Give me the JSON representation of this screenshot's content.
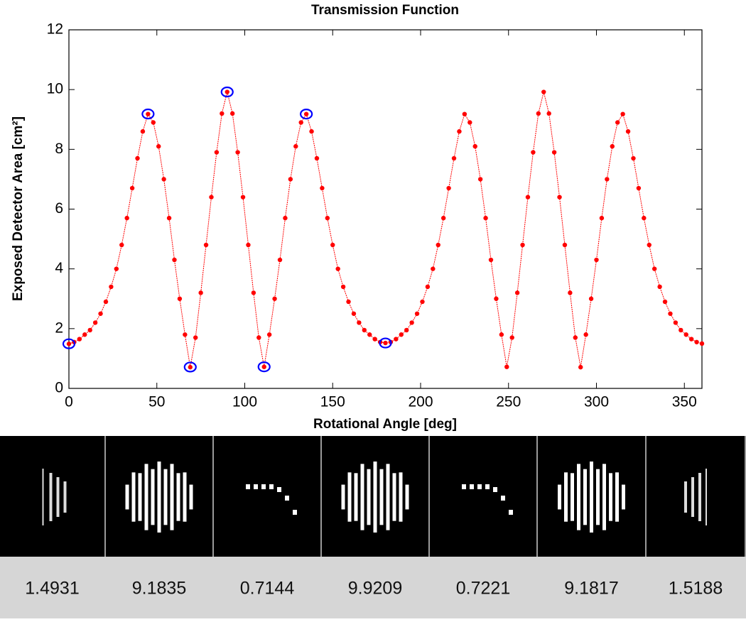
{
  "chart_data": {
    "type": "line",
    "title": "Transmission Function",
    "xlabel": "Rotational Angle [deg]",
    "ylabel": "Exposed Detector Area [cm²]",
    "x": [
      0,
      3,
      6,
      9,
      12,
      15,
      18,
      21,
      24,
      27,
      30,
      33,
      36,
      39,
      42,
      45,
      48,
      51,
      54,
      57,
      60,
      63,
      66,
      69,
      72,
      75,
      78,
      81,
      84,
      87,
      90,
      93,
      96,
      99,
      102,
      105,
      108,
      111,
      114,
      117,
      120,
      123,
      126,
      129,
      132,
      135,
      138,
      141,
      144,
      147,
      150,
      153,
      156,
      159,
      162,
      165,
      168,
      171,
      174,
      177,
      180,
      183,
      186,
      189,
      192,
      195,
      198,
      201,
      204,
      207,
      210,
      213,
      216,
      219,
      222,
      225,
      228,
      231,
      234,
      237,
      240,
      243,
      246,
      249,
      252,
      255,
      258,
      261,
      264,
      267,
      270,
      273,
      276,
      279,
      282,
      285,
      288,
      291,
      294,
      297,
      300,
      303,
      306,
      309,
      312,
      315,
      318,
      321,
      324,
      327,
      330,
      333,
      336,
      339,
      342,
      345,
      348,
      351,
      354,
      357,
      360
    ],
    "values": [
      1.49,
      1.55,
      1.65,
      1.8,
      1.95,
      2.2,
      2.5,
      2.9,
      3.4,
      4.0,
      4.8,
      5.7,
      6.7,
      7.7,
      8.6,
      9.18,
      8.9,
      8.1,
      7.0,
      5.7,
      4.3,
      3.0,
      1.8,
      0.71,
      1.7,
      3.2,
      4.8,
      6.4,
      7.9,
      9.2,
      9.92,
      9.2,
      7.9,
      6.4,
      4.8,
      3.2,
      1.7,
      0.72,
      1.8,
      3.0,
      4.3,
      5.7,
      7.0,
      8.1,
      8.9,
      9.18,
      8.6,
      7.7,
      6.7,
      5.7,
      4.8,
      4.0,
      3.4,
      2.9,
      2.5,
      2.2,
      1.95,
      1.8,
      1.65,
      1.55,
      1.52,
      1.55,
      1.65,
      1.8,
      1.95,
      2.2,
      2.5,
      2.9,
      3.4,
      4.0,
      4.8,
      5.7,
      6.7,
      7.7,
      8.6,
      9.18,
      8.9,
      8.1,
      7.0,
      5.7,
      4.3,
      3.0,
      1.8,
      0.72,
      1.7,
      3.2,
      4.8,
      6.4,
      7.9,
      9.2,
      9.92,
      9.2,
      7.9,
      6.4,
      4.8,
      3.2,
      1.7,
      0.71,
      1.8,
      3.0,
      4.3,
      5.7,
      7.0,
      8.1,
      8.9,
      9.18,
      8.6,
      7.7,
      6.7,
      5.7,
      4.8,
      4.0,
      3.4,
      2.9,
      2.5,
      2.2,
      1.95,
      1.8,
      1.65,
      1.55,
      1.5
    ],
    "color": "#ff0000",
    "highlights": {
      "x": [
        0,
        45,
        69,
        90,
        111,
        135,
        180
      ],
      "values": [
        1.4931,
        9.1835,
        0.7144,
        9.9209,
        0.7221,
        9.1817,
        1.5188
      ],
      "color": "#0000ff"
    },
    "xlim": [
      0,
      360
    ],
    "xticks": [
      0,
      50,
      100,
      150,
      200,
      250,
      300,
      350
    ],
    "ylim": [
      0,
      12
    ],
    "yticks": [
      0,
      2,
      4,
      6,
      8,
      10,
      12
    ],
    "grid": false
  }
}
